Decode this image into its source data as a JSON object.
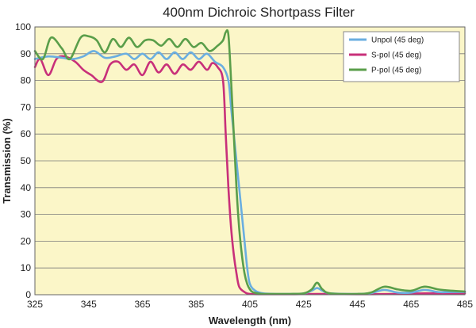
{
  "chart_data": {
    "type": "line",
    "title": "400nm Dichroic Shortpass Filter",
    "xlabel": "Wavelength (nm)",
    "ylabel": "Transmission (%)",
    "xlim": [
      325,
      485
    ],
    "ylim": [
      0,
      100
    ],
    "x_ticks": [
      "325",
      "345",
      "365",
      "385",
      "405",
      "425",
      "445",
      "465",
      "485"
    ],
    "y_ticks": [
      "0",
      "10",
      "20",
      "30",
      "40",
      "50",
      "60",
      "70",
      "80",
      "90",
      "100"
    ],
    "grid": true,
    "legend_position": "top-right",
    "plot_background": "#fbf6c8",
    "series": [
      {
        "name": "Unpol (45 deg)",
        "color": "#6aaee0",
        "x": [
          325,
          330,
          335,
          339,
          343,
          347,
          351,
          355,
          359,
          362,
          365,
          368,
          371,
          374,
          377,
          380,
          383,
          386,
          389,
          392,
          395,
          397,
          398,
          399,
          400,
          401,
          402,
          403,
          404,
          405,
          407,
          410,
          415,
          420,
          425,
          428,
          430,
          432,
          435,
          445,
          450,
          455,
          460,
          465,
          470,
          475,
          480,
          485
        ],
        "y": [
          88,
          89,
          88.5,
          88,
          89,
          91,
          88.5,
          89,
          90,
          88,
          90,
          88,
          90.5,
          88,
          90.5,
          88,
          90.5,
          88,
          90,
          87,
          85,
          80,
          70,
          60,
          50,
          40,
          30,
          20,
          10,
          4,
          1.5,
          0.5,
          0.3,
          0.3,
          0.5,
          1.5,
          2.5,
          1.5,
          0.5,
          0.3,
          0.6,
          1.8,
          0.8,
          0.8,
          1.8,
          1,
          1,
          1
        ]
      },
      {
        "name": "S-pol (45 deg)",
        "color": "#c8307a",
        "x": [
          325,
          327,
          330,
          333,
          336,
          340,
          343,
          346,
          350,
          353,
          356,
          359,
          362,
          365,
          368,
          371,
          374,
          377,
          380,
          383,
          386,
          389,
          391,
          393,
          395,
          396,
          397,
          398,
          399,
          400,
          401,
          403,
          405,
          410,
          420,
          430,
          445,
          460,
          470,
          485
        ],
        "y": [
          85,
          88,
          82,
          88,
          89,
          87,
          84,
          82,
          79.5,
          86,
          87,
          84,
          86,
          82,
          87,
          83,
          86,
          82.5,
          86,
          84,
          87,
          84,
          86.5,
          85,
          80,
          60,
          40,
          25,
          15,
          8,
          3,
          1,
          0.3,
          0.2,
          0.2,
          0.3,
          0.2,
          0.3,
          0.5,
          0.5
        ]
      },
      {
        "name": "P-pol (45 deg)",
        "color": "#5a9e4a",
        "x": [
          325,
          328,
          331,
          335,
          338,
          342,
          345,
          348,
          351,
          354,
          357,
          360,
          363,
          366,
          369,
          372,
          375,
          378,
          381,
          384,
          387,
          390,
          393,
          395,
          396,
          397,
          398,
          399,
          400,
          401,
          402,
          403,
          404,
          405,
          406,
          408,
          410,
          415,
          420,
          425,
          428,
          430,
          432,
          435,
          445,
          450,
          455,
          460,
          465,
          470,
          475,
          480,
          485
        ],
        "y": [
          91,
          88,
          96,
          92,
          88,
          96,
          96.5,
          95,
          90.5,
          95.5,
          92.5,
          96,
          92.5,
          95,
          95,
          93,
          95.5,
          92.5,
          95.5,
          92.5,
          94,
          91,
          93,
          95,
          98,
          97,
          80,
          60,
          40,
          25,
          15,
          8,
          4,
          2,
          1,
          0.5,
          0.3,
          0.3,
          0.3,
          0.5,
          2,
          4.5,
          2,
          0.5,
          0.3,
          0.8,
          3,
          2,
          1.5,
          3,
          2,
          1.5,
          1.2
        ]
      }
    ]
  }
}
